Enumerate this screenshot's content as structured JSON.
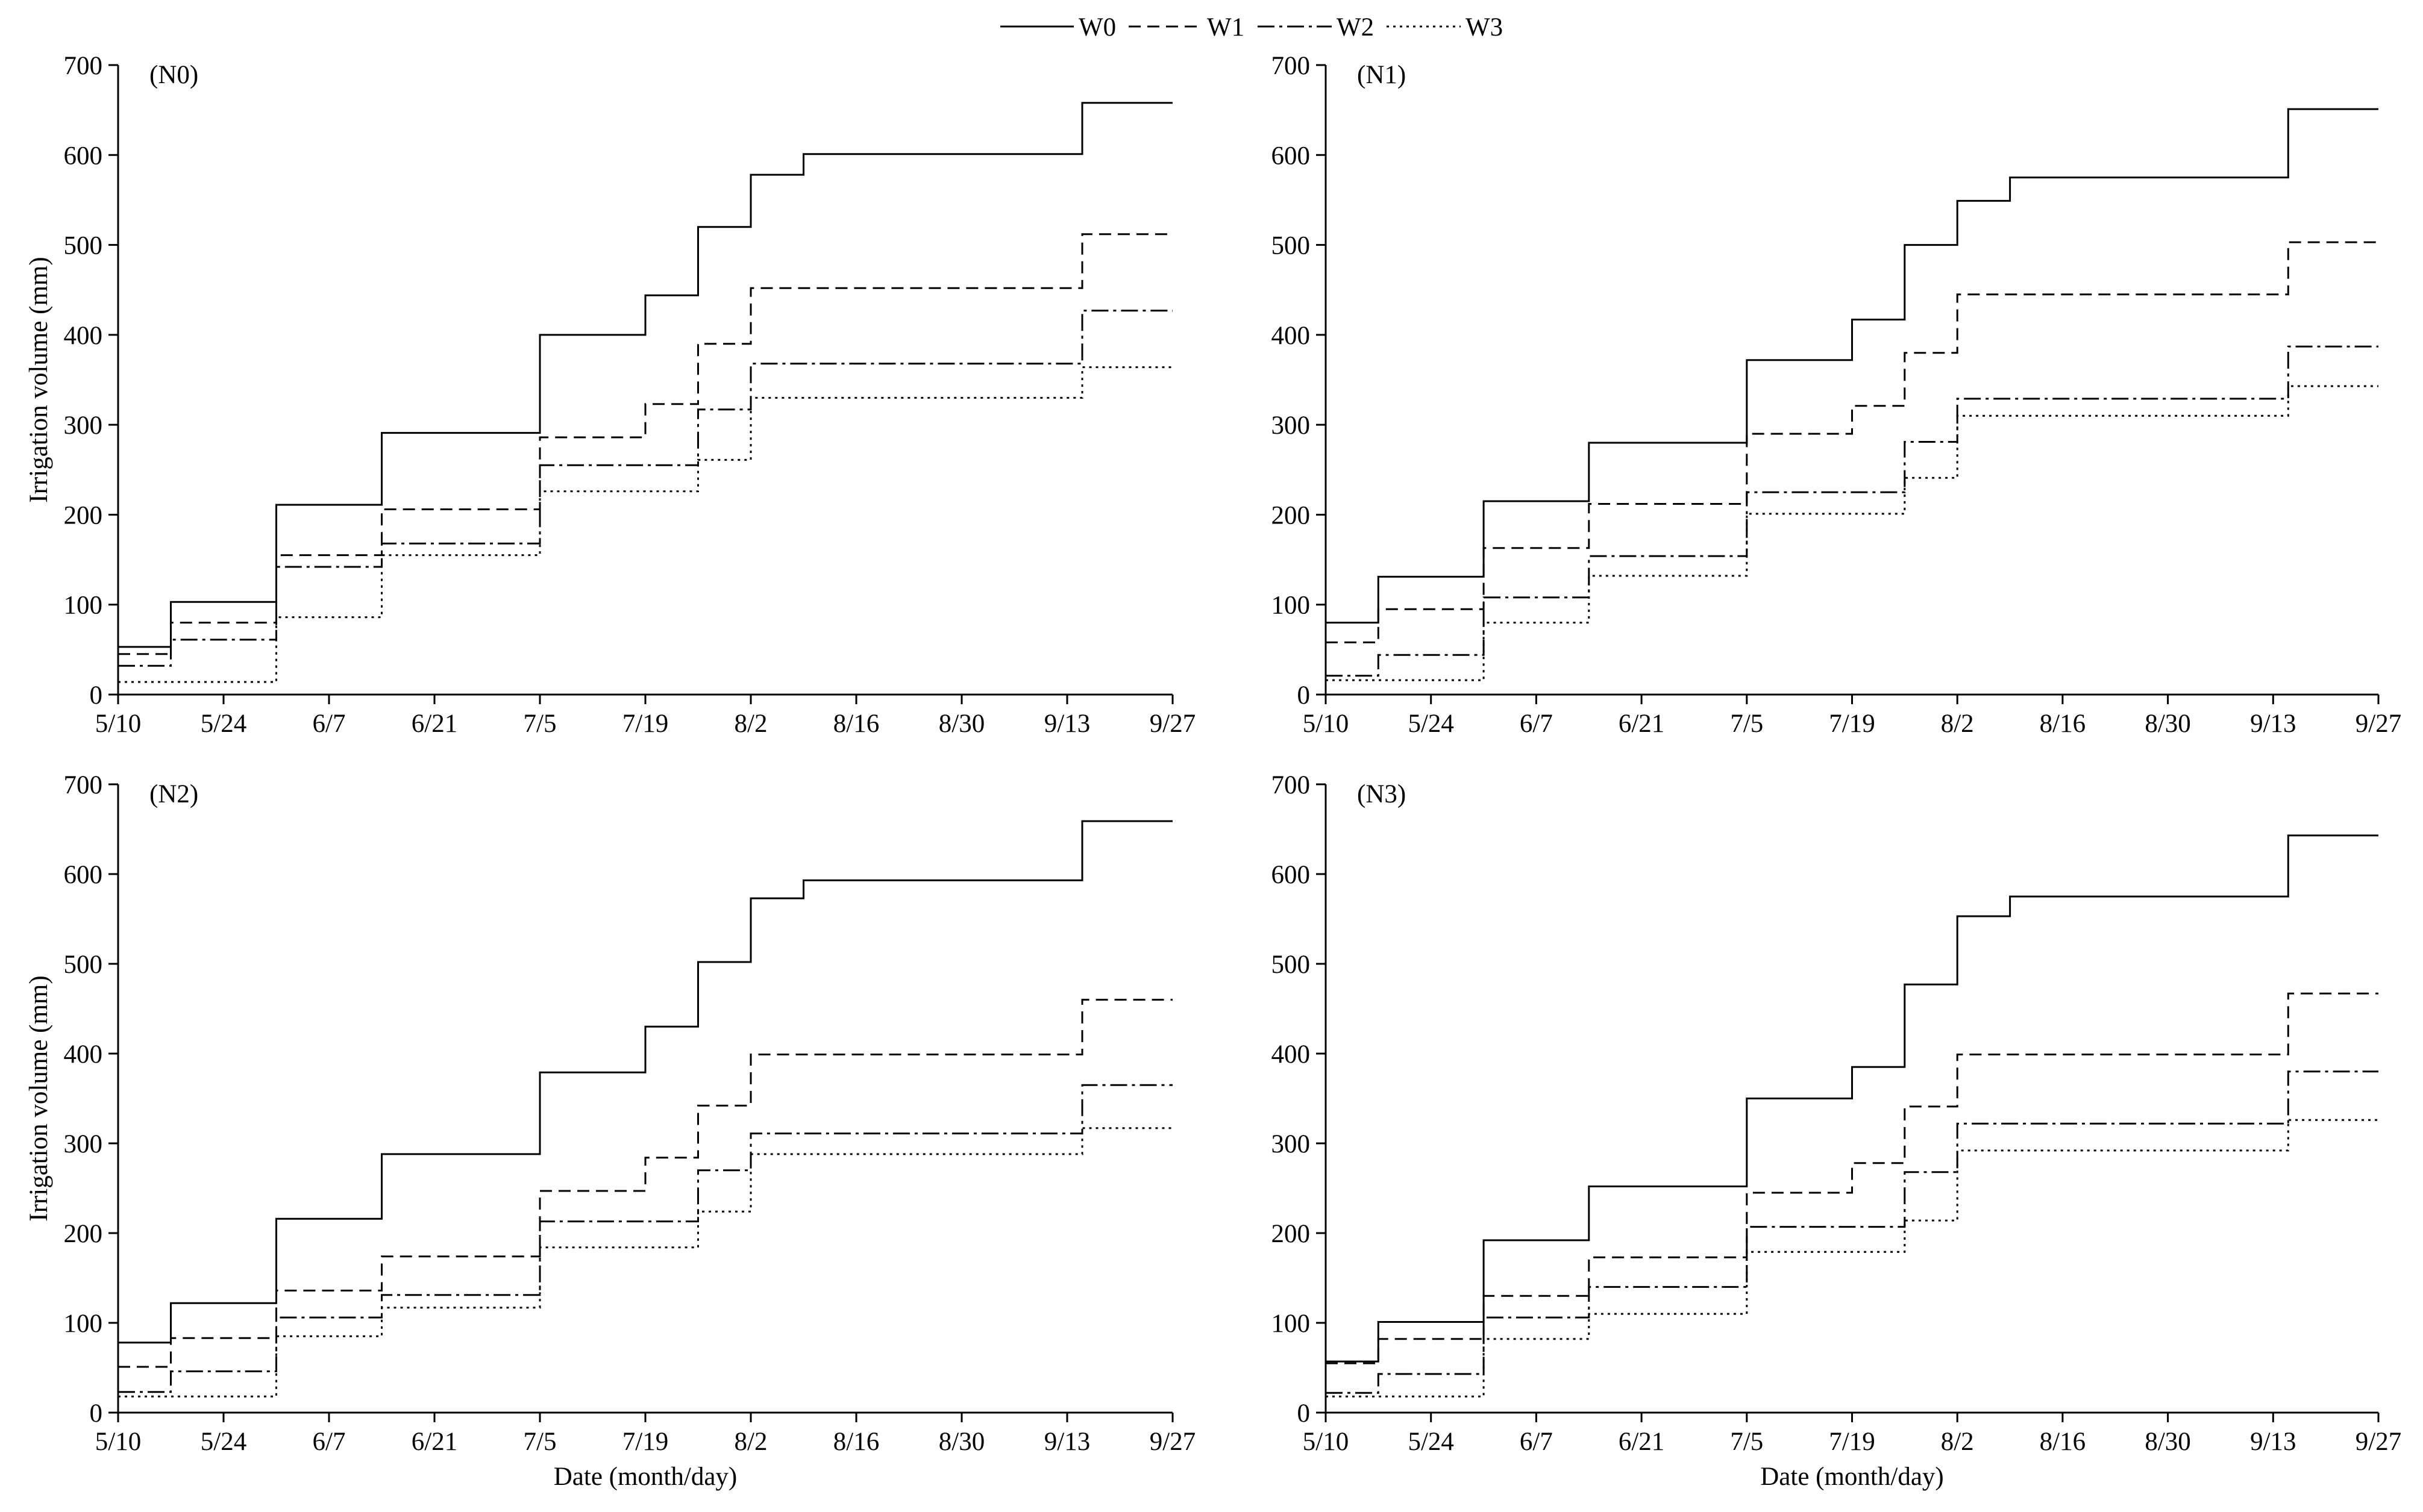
{
  "legend": {
    "entries": [
      {
        "name": "W0",
        "dash": "solid"
      },
      {
        "name": "W1",
        "dash": "dashed"
      },
      {
        "name": "W2",
        "dash": "dashdot"
      },
      {
        "name": "W3",
        "dash": "dotted"
      }
    ],
    "placement": "top-center"
  },
  "chart_data": [
    {
      "type": "line",
      "title": "(N0)",
      "xlabel": "",
      "ylabel": "Irrigation volume (mm)",
      "ylim": [
        0,
        700
      ],
      "yticks": [
        0,
        100,
        200,
        300,
        400,
        500,
        600,
        700
      ],
      "xlim": [
        0,
        140
      ],
      "xticks": [
        0,
        14,
        28,
        42,
        56,
        70,
        84,
        98,
        112,
        126,
        140
      ],
      "xtick_labels": [
        "5/10",
        "5/24",
        "6/7",
        "6/21",
        "7/5",
        "7/19",
        "8/2",
        "8/16",
        "8/30",
        "9/13",
        "9/27"
      ],
      "change_days": [
        0,
        7,
        21,
        35,
        56,
        70,
        77,
        84,
        91,
        128
      ],
      "series": [
        {
          "name": "W0",
          "values": [
            53,
            103,
            211,
            291,
            400,
            444,
            520,
            578,
            601,
            658
          ]
        },
        {
          "name": "W1",
          "values": [
            45,
            80,
            155,
            206,
            286,
            323,
            390,
            452,
            452,
            512
          ]
        },
        {
          "name": "W2",
          "values": [
            32,
            61,
            142,
            168,
            255,
            255,
            317,
            368,
            368,
            427
          ]
        },
        {
          "name": "W3",
          "values": [
            14,
            14,
            86,
            155,
            226,
            226,
            261,
            330,
            330,
            364
          ]
        }
      ]
    },
    {
      "type": "line",
      "title": "(N1)",
      "xlabel": "",
      "ylabel": "",
      "ylim": [
        0,
        700
      ],
      "yticks": [
        0,
        100,
        200,
        300,
        400,
        500,
        600,
        700
      ],
      "xlim": [
        0,
        140
      ],
      "xticks": [
        0,
        14,
        28,
        42,
        56,
        70,
        84,
        98,
        112,
        126,
        140
      ],
      "xtick_labels": [
        "5/10",
        "5/24",
        "6/7",
        "6/21",
        "7/5",
        "7/19",
        "8/2",
        "8/16",
        "8/30",
        "9/13",
        "9/27"
      ],
      "change_days": [
        0,
        7,
        21,
        35,
        56,
        70,
        77,
        84,
        91,
        128
      ],
      "series": [
        {
          "name": "W0",
          "values": [
            80,
            131,
            215,
            280,
            372,
            417,
            500,
            549,
            575,
            651
          ]
        },
        {
          "name": "W1",
          "values": [
            58,
            95,
            163,
            212,
            290,
            321,
            380,
            445,
            445,
            503
          ]
        },
        {
          "name": "W2",
          "values": [
            21,
            44,
            108,
            154,
            225,
            225,
            281,
            329,
            329,
            387
          ]
        },
        {
          "name": "W3",
          "values": [
            16,
            16,
            80,
            132,
            201,
            201,
            241,
            310,
            310,
            343
          ]
        }
      ]
    },
    {
      "type": "line",
      "title": "(N2)",
      "xlabel": "Date (month/day)",
      "ylabel": "Irrigation volume (mm)",
      "ylim": [
        0,
        700
      ],
      "yticks": [
        0,
        100,
        200,
        300,
        400,
        500,
        600,
        700
      ],
      "xlim": [
        0,
        140
      ],
      "xticks": [
        0,
        14,
        28,
        42,
        56,
        70,
        84,
        98,
        112,
        126,
        140
      ],
      "xtick_labels": [
        "5/10",
        "5/24",
        "6/7",
        "6/21",
        "7/5",
        "7/19",
        "8/2",
        "8/16",
        "8/30",
        "9/13",
        "9/27"
      ],
      "change_days": [
        0,
        7,
        21,
        35,
        56,
        70,
        77,
        84,
        91,
        128
      ],
      "series": [
        {
          "name": "W0",
          "values": [
            78,
            122,
            216,
            288,
            379,
            430,
            502,
            573,
            593,
            659
          ]
        },
        {
          "name": "W1",
          "values": [
            51,
            83,
            136,
            174,
            247,
            284,
            342,
            399,
            399,
            460
          ]
        },
        {
          "name": "W2",
          "values": [
            23,
            46,
            106,
            131,
            213,
            213,
            270,
            311,
            311,
            365
          ]
        },
        {
          "name": "W3",
          "values": [
            18,
            18,
            85,
            117,
            184,
            184,
            224,
            288,
            288,
            317
          ]
        }
      ]
    },
    {
      "type": "line",
      "title": "(N3)",
      "xlabel": "Date (month/day)",
      "ylabel": "",
      "ylim": [
        0,
        700
      ],
      "yticks": [
        0,
        100,
        200,
        300,
        400,
        500,
        600,
        700
      ],
      "xlim": [
        0,
        140
      ],
      "xticks": [
        0,
        14,
        28,
        42,
        56,
        70,
        84,
        98,
        112,
        126,
        140
      ],
      "xtick_labels": [
        "5/10",
        "5/24",
        "6/7",
        "6/21",
        "7/5",
        "7/19",
        "8/2",
        "8/16",
        "8/30",
        "9/13",
        "9/27"
      ],
      "change_days": [
        0,
        7,
        21,
        35,
        56,
        70,
        77,
        84,
        91,
        128
      ],
      "series": [
        {
          "name": "W0",
          "values": [
            57,
            101,
            192,
            252,
            350,
            385,
            477,
            553,
            575,
            643
          ]
        },
        {
          "name": "W1",
          "values": [
            55,
            82,
            130,
            173,
            245,
            278,
            341,
            399,
            399,
            467
          ]
        },
        {
          "name": "W2",
          "values": [
            22,
            43,
            106,
            140,
            207,
            207,
            268,
            322,
            322,
            380
          ]
        },
        {
          "name": "W3",
          "values": [
            18,
            18,
            82,
            110,
            179,
            179,
            214,
            292,
            292,
            326
          ]
        }
      ]
    }
  ]
}
